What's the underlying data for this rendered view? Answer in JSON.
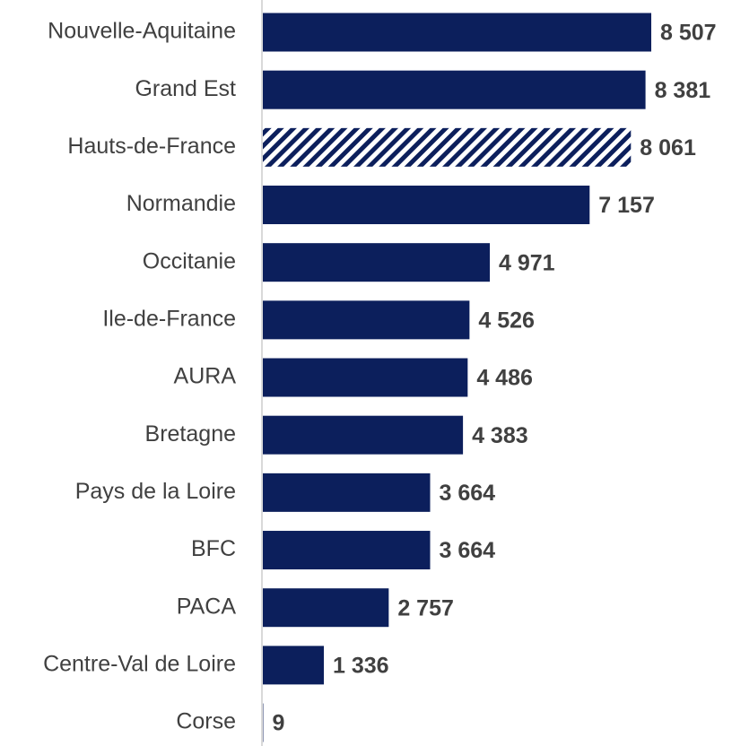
{
  "chart_data": {
    "type": "barh",
    "categories": [
      "Nouvelle-Aquitaine",
      "Grand Est",
      "Hauts-de-France",
      "Normandie",
      "Occitanie",
      "Ile-de-France",
      "AURA",
      "Bretagne",
      "Pays de la Loire",
      "BFC",
      "PACA",
      "Centre-Val de Loire",
      "Corse"
    ],
    "values": [
      8507,
      8381,
      8061,
      7157,
      4971,
      4526,
      4486,
      4383,
      3664,
      3664,
      2757,
      1336,
      9
    ],
    "value_labels": [
      "8 507",
      "8 381",
      "8 061",
      "7 157",
      "4 971",
      "4 526",
      "4 486",
      "4 383",
      "3 664",
      "3 664",
      "2 757",
      "1 336",
      "9"
    ],
    "patterns": [
      "solid",
      "solid",
      "hatch",
      "solid",
      "solid",
      "solid",
      "solid",
      "solid",
      "solid",
      "solid",
      "solid",
      "solid",
      "solid"
    ],
    "color": "#0c1f5c"
  }
}
